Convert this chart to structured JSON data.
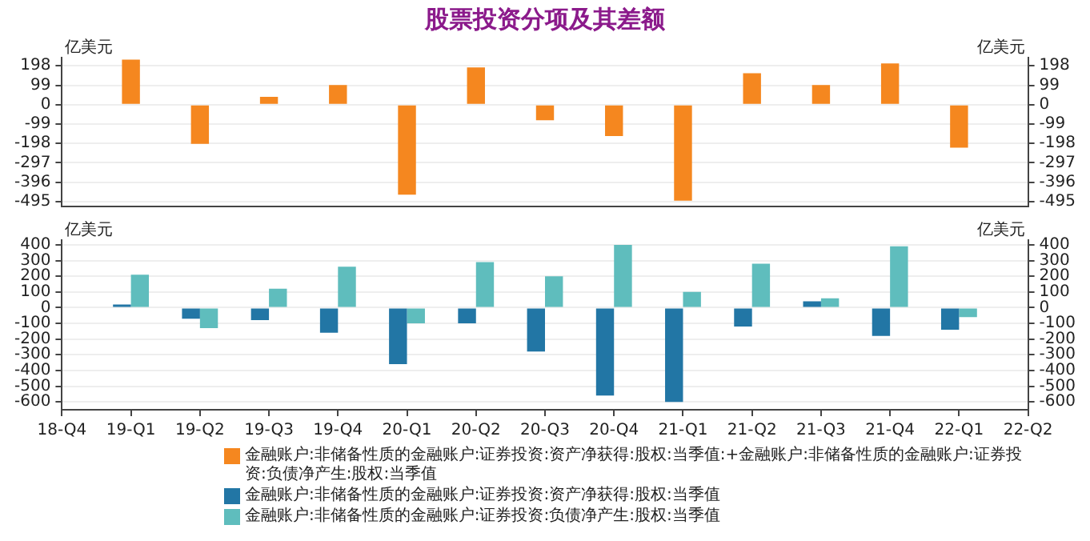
{
  "chart_data": [
    {
      "type": "bar",
      "title": "股票投资分项及其差额",
      "categories": [
        null,
        null,
        null,
        null,
        null,
        null,
        null,
        null,
        null,
        null,
        null,
        null,
        null,
        null,
        null
      ],
      "series": [
        {
          "name": "金融账户:非储备性质的金融账户:证券投资:资产净获得:股权:当季值:+金融账户:非储备性质的金融账户:证券投资:负债净产生:股权:当季值",
          "color": "#f5871f",
          "values": [
            null,
            230,
            -200,
            40,
            100,
            -460,
            190,
            -80,
            -160,
            -490,
            160,
            100,
            210,
            -220,
            null
          ]
        }
      ],
      "ylim": [
        -520,
        240
      ],
      "yticks": [
        -495,
        -396,
        -297,
        -198,
        -99,
        0,
        99,
        198
      ],
      "y2lim": [
        -520,
        240
      ],
      "y2ticks": [
        -495,
        -396,
        -297,
        -198,
        -99,
        0,
        99,
        198
      ],
      "grid": "y",
      "legend": "bottom",
      "tick_labels": "y",
      "annotations": [
        "亿美元",
        "亿美元"
      ]
    },
    {
      "type": "bar",
      "categories": [
        "18-Q4",
        "19-Q1",
        "19-Q2",
        "19-Q3",
        "19-Q4",
        "20-Q1",
        "20-Q2",
        "20-Q3",
        "20-Q4",
        "21-Q1",
        "21-Q2",
        "21-Q3",
        "21-Q4",
        "22-Q1",
        "22-Q2"
      ],
      "series": [
        {
          "name": "金融账户:非储备性质的金融账户:证券投资:资产净获得:股权:当季值",
          "color": "#2276a5",
          "values": [
            null,
            20,
            -70,
            -80,
            -160,
            -360,
            -100,
            -280,
            -560,
            -600,
            -120,
            40,
            -180,
            -140,
            null
          ]
        },
        {
          "name": "金融账户:非储备性质的金融账户:证券投资:负债净产生:股权:当季值",
          "color": "#5fbdbd",
          "values": [
            null,
            210,
            -130,
            120,
            260,
            -100,
            290,
            200,
            400,
            100,
            280,
            60,
            390,
            -60,
            null
          ]
        }
      ],
      "ylim": [
        -650,
        430
      ],
      "yticks": [
        -600,
        -500,
        -400,
        -300,
        -200,
        -100,
        0,
        100,
        200,
        300,
        400
      ],
      "y2lim": [
        -650,
        430
      ],
      "y2ticks": [
        -600,
        -500,
        -400,
        -300,
        -200,
        -100,
        0,
        100,
        200,
        300,
        400
      ],
      "grid": "y",
      "legend": "bottom",
      "annotations": [
        "亿美元",
        "亿美元"
      ]
    }
  ]
}
